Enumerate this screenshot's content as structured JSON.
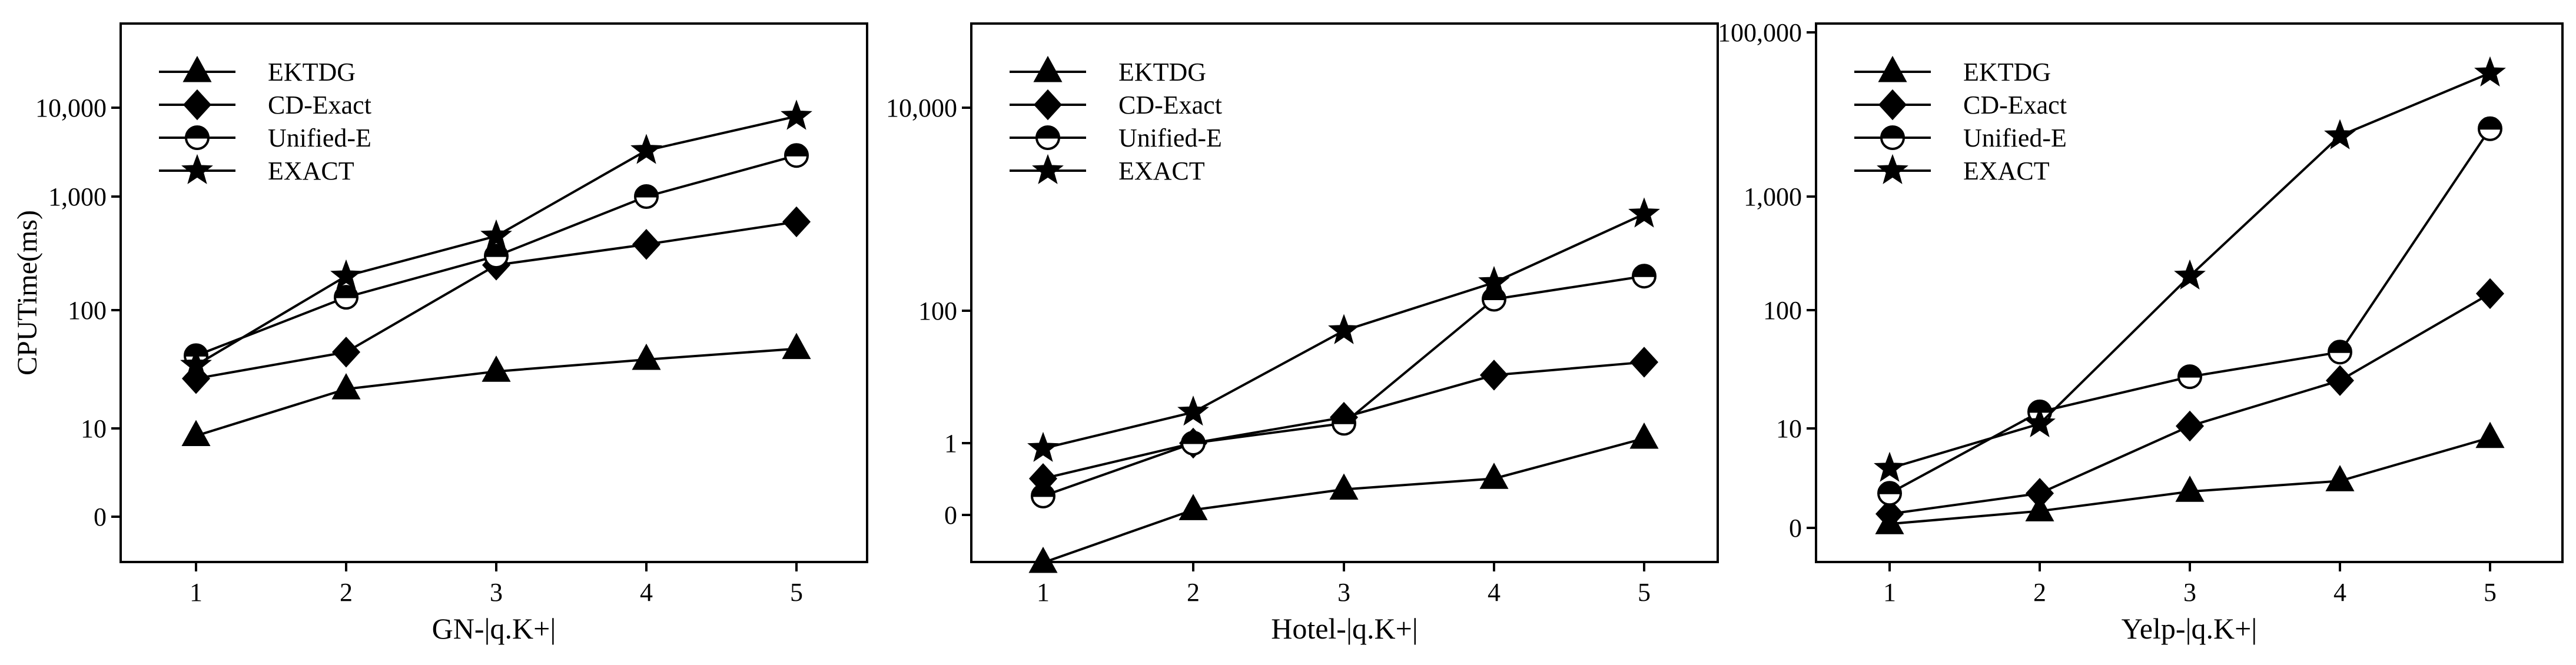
{
  "chart_data": [
    {
      "type": "line",
      "xlabel": "GN-|q.K+|",
      "ylabel": "CPUTime(ms)",
      "x": [
        1,
        2,
        3,
        4,
        5
      ],
      "y_ticks": [
        "0",
        "10",
        "100",
        "1,000",
        "10,000"
      ],
      "x_ticks": [
        "1",
        "2",
        "3",
        "4",
        "5"
      ],
      "legend_position": "top-left",
      "grid": false,
      "series": [
        {
          "name": "EKTDG",
          "marker": "triangle",
          "values": [
            8,
            22,
            31,
            39,
            48
          ]
        },
        {
          "name": "CD-Exact",
          "marker": "diamond",
          "values": [
            27,
            45,
            250,
            380,
            600
          ]
        },
        {
          "name": "Unified-E",
          "marker": "half-circle",
          "values": [
            42,
            130,
            300,
            1000,
            2900
          ]
        },
        {
          "name": "EXACT",
          "marker": "star",
          "values": [
            35,
            200,
            450,
            3300,
            8000
          ]
        }
      ]
    },
    {
      "type": "line",
      "xlabel": "Hotel-|q.K+|",
      "ylabel": "",
      "x": [
        1,
        2,
        3,
        4,
        5
      ],
      "y_ticks": [
        "0",
        "1",
        "100",
        "10,000"
      ],
      "x_ticks": [
        "1",
        "2",
        "3",
        "4",
        "5"
      ],
      "legend_position": "top-left",
      "grid": false,
      "series": [
        {
          "name": "EKTDG",
          "marker": "triangle",
          "values": [
            -0.2,
            0.05,
            0.28,
            0.42,
            1.3
          ]
        },
        {
          "name": "CD-Exact",
          "marker": "diamond",
          "values": [
            0.42,
            1.0,
            3.3,
            14,
            21
          ]
        },
        {
          "name": "Unified-E",
          "marker": "half-circle",
          "values": [
            0.2,
            1.0,
            2.6,
            130,
            220
          ]
        },
        {
          "name": "EXACT",
          "marker": "star",
          "values": [
            0.9,
            4.0,
            55,
            190,
            900
          ]
        }
      ]
    },
    {
      "type": "line",
      "xlabel": "Yelp-|q.K+|",
      "ylabel": "",
      "x": [
        1,
        2,
        3,
        4,
        5
      ],
      "y_ticks": [
        "0",
        "10",
        "100",
        "1,000",
        "100,000"
      ],
      "x_ticks": [
        "1",
        "2",
        "3",
        "4",
        "5"
      ],
      "legend_position": "top-left",
      "grid": false,
      "series": [
        {
          "name": "EKTDG",
          "marker": "triangle",
          "values": [
            0.1,
            0.5,
            1.4,
            2.1,
            7.8
          ]
        },
        {
          "name": "CD-Exact",
          "marker": "diamond",
          "values": [
            0.4,
            1.3,
            10.5,
            26,
            140
          ]
        },
        {
          "name": "Unified-E",
          "marker": "half-circle",
          "values": [
            1.3,
            14,
            28,
            45,
            6700
          ]
        },
        {
          "name": "EXACT",
          "marker": "star",
          "values": [
            3.2,
            11,
            200,
            5500,
            32000
          ]
        }
      ]
    }
  ]
}
